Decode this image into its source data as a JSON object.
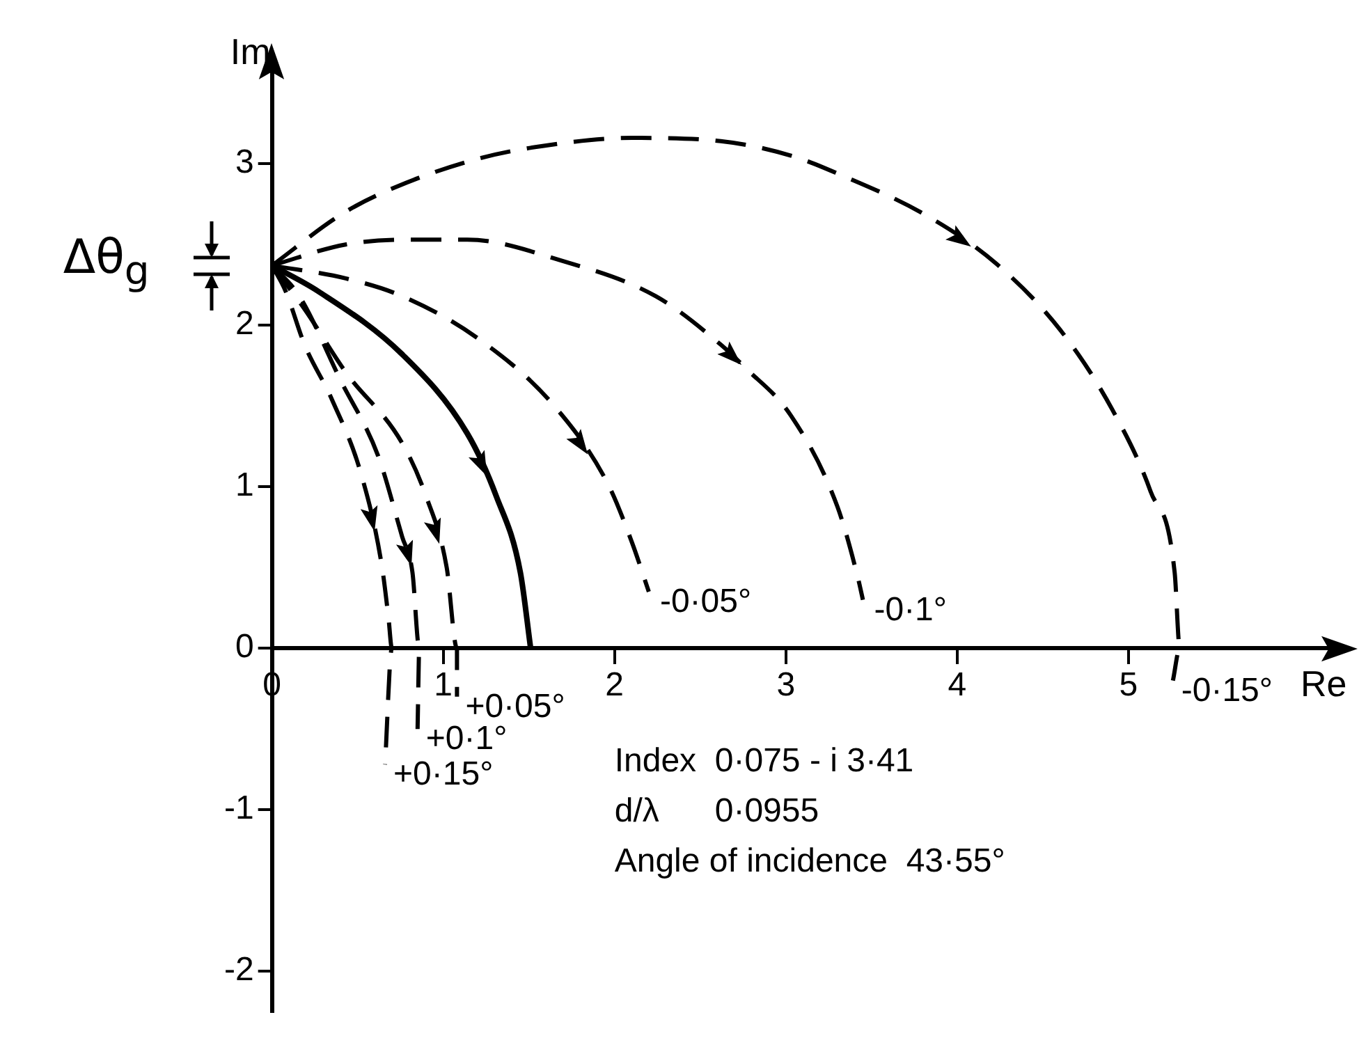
{
  "chart_data": {
    "type": "line",
    "xlabel": "Re",
    "ylabel": "Im",
    "xlim": [
      0,
      6.2
    ],
    "ylim": [
      -2.25,
      3.6
    ],
    "xticks": [
      0,
      1,
      2,
      3,
      4,
      5
    ],
    "yticks": [
      -2,
      -1,
      0,
      1,
      2,
      3
    ],
    "grid": false,
    "legend": false,
    "marker": "none",
    "series": [
      {
        "name": "-0·15°",
        "color": "#000000",
        "line_style": "dashed",
        "x": [
          0,
          0.41,
          0.71,
          1.2,
          1.58,
          2.1,
          2.62,
          3.03,
          3.3,
          3.82,
          4.23,
          4.61,
          4.91,
          5.13,
          5.27,
          5.3,
          5.26
        ],
        "values": [
          2.37,
          2.69,
          2.85,
          3.03,
          3.11,
          3.16,
          3.14,
          3.05,
          2.94,
          2.68,
          2.38,
          1.96,
          1.47,
          0.97,
          0.47,
          0,
          -0.2
        ]
      },
      {
        "name": "-0·1°",
        "color": "#000000",
        "line_style": "dashed",
        "x": [
          0,
          0.43,
          0.79,
          1.14,
          1.69,
          2.24,
          2.62,
          2.76,
          3.03,
          3.3,
          3.42,
          3.45
        ],
        "values": [
          2.37,
          2.5,
          2.53,
          2.53,
          2.4,
          2.18,
          1.88,
          1.74,
          1.44,
          0.88,
          0.44,
          0.3
        ]
      },
      {
        "name": "-0·05°",
        "color": "#000000",
        "line_style": "dashed",
        "x": [
          0,
          0.43,
          0.76,
          1.2,
          1.64,
          1.96,
          2.1,
          2.2
        ],
        "values": [
          2.37,
          2.29,
          2.18,
          1.92,
          1.51,
          1.02,
          0.66,
          0.35
        ]
      },
      {
        "color": "#000000",
        "line_style": "solid",
        "x": [
          0,
          0.27,
          0.76,
          1.14,
          1.31,
          1.45,
          1.51
        ],
        "values": [
          2.37,
          2.21,
          1.82,
          1.33,
          0.94,
          0.47,
          0
        ]
      },
      {
        "name": "+0·05°",
        "color": "#000000",
        "line_style": "dashed",
        "x": [
          0,
          0.19,
          0.43,
          0.76,
          0.9,
          1.02,
          1.08,
          1.08
        ],
        "values": [
          2.37,
          2.1,
          1.71,
          1.27,
          0.94,
          0.5,
          0,
          -0.3
        ]
      },
      {
        "name": "+0·1°",
        "color": "#000000",
        "line_style": "dashed",
        "x": [
          0,
          0.16,
          0.4,
          0.62,
          0.76,
          0.82,
          0.86,
          0.85
        ],
        "values": [
          2.37,
          2.18,
          1.66,
          1.19,
          0.69,
          0.47,
          0,
          -0.5
        ]
      },
      {
        "name": "+0·15°",
        "color": "#000000",
        "line_style": "dashed",
        "x": [
          0,
          0.08,
          0.19,
          0.35,
          0.52,
          0.64,
          0.68,
          0.7,
          0.66
        ],
        "values": [
          2.37,
          2.21,
          1.88,
          1.54,
          1.08,
          0.52,
          0.19,
          0,
          -0.72
        ]
      }
    ],
    "annotations": [
      {
        "text": "Δθ$_{g}$",
        "x": 0,
        "y": 2.37
      },
      "Index  0·075 - i 3·41",
      "d/λ      0·0955",
      "Angle of incidence  43·55°"
    ]
  }
}
